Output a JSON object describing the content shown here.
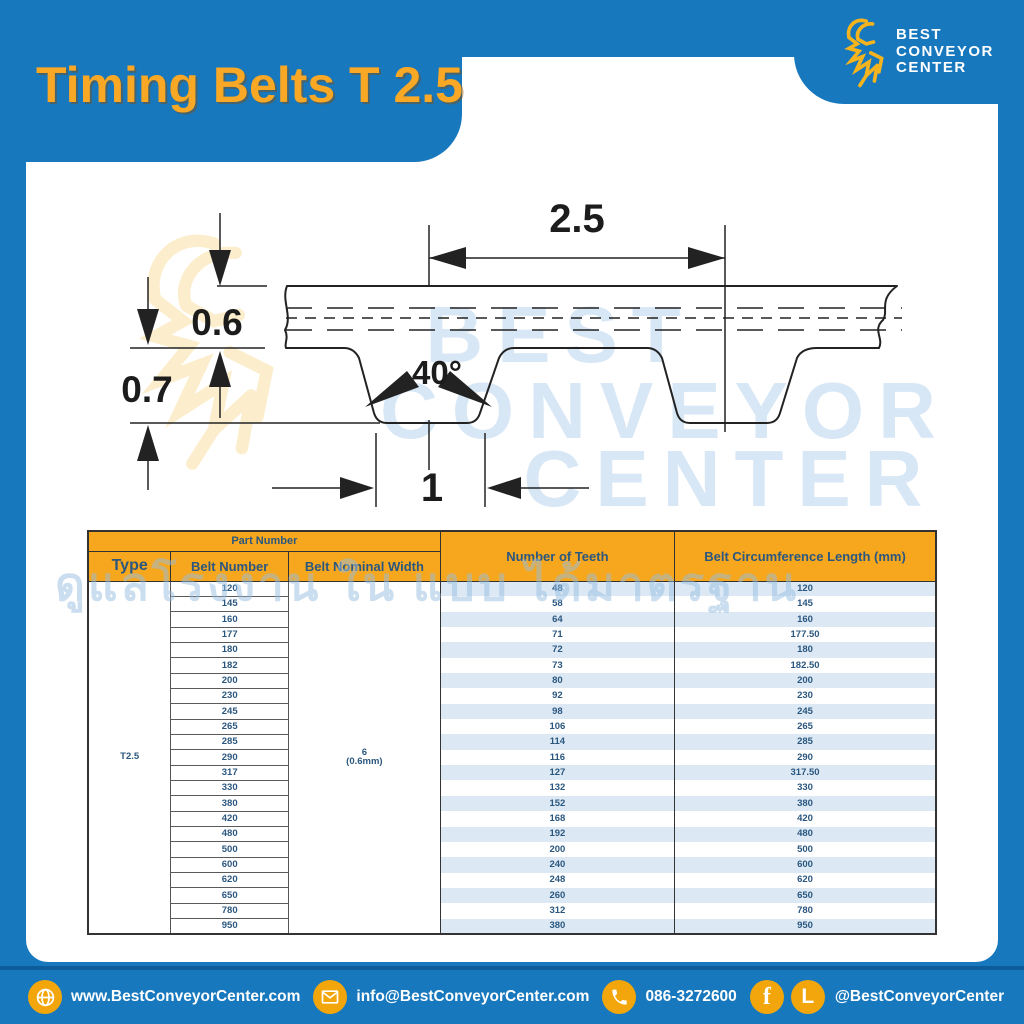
{
  "theme": {
    "blue": "#1878BE",
    "blue_dark": "#0D5C99",
    "yellow": "#F7A71D",
    "title_yellow": "#F9A826",
    "navy": "#2B577F",
    "stripe": "#DCE9F5"
  },
  "header": {
    "title": "Timing Belts T 2.5",
    "logo": {
      "line1": "BEST",
      "line2": "CONVEYOR",
      "line3": "CENTER"
    }
  },
  "diagram": {
    "dim_pitch": "2.5",
    "dim_thickness": "0.6",
    "dim_tooth_height": "0.7",
    "dim_angle": "40°",
    "dim_tooth_width": "1",
    "watermark": {
      "line1": "BEST",
      "line2": "CONVEYOR",
      "line3": "CENTER"
    }
  },
  "watermark_thai": "ดูแลโรงงาน ใน แบบ ได้มาตรฐาน",
  "table": {
    "header": {
      "part_number": "Part Number",
      "type": "Type",
      "belt_number": "Belt Number",
      "belt_nominal_width": "Belt Nominal Width",
      "teeth": "Number of Teeth",
      "length": "Belt Circumference Length (mm)"
    },
    "type_value": "T2.5",
    "nominal_width_line1": "6",
    "nominal_width_line2": "(0.6mm)",
    "rows": [
      {
        "belt": "120",
        "teeth": "48",
        "length": "120"
      },
      {
        "belt": "145",
        "teeth": "58",
        "length": "145"
      },
      {
        "belt": "160",
        "teeth": "64",
        "length": "160"
      },
      {
        "belt": "177",
        "teeth": "71",
        "length": "177.50"
      },
      {
        "belt": "180",
        "teeth": "72",
        "length": "180"
      },
      {
        "belt": "182",
        "teeth": "73",
        "length": "182.50"
      },
      {
        "belt": "200",
        "teeth": "80",
        "length": "200"
      },
      {
        "belt": "230",
        "teeth": "92",
        "length": "230"
      },
      {
        "belt": "245",
        "teeth": "98",
        "length": "245"
      },
      {
        "belt": "265",
        "teeth": "106",
        "length": "265"
      },
      {
        "belt": "285",
        "teeth": "114",
        "length": "285"
      },
      {
        "belt": "290",
        "teeth": "116",
        "length": "290"
      },
      {
        "belt": "317",
        "teeth": "127",
        "length": "317.50"
      },
      {
        "belt": "330",
        "teeth": "132",
        "length": "330"
      },
      {
        "belt": "380",
        "teeth": "152",
        "length": "380"
      },
      {
        "belt": "420",
        "teeth": "168",
        "length": "420"
      },
      {
        "belt": "480",
        "teeth": "192",
        "length": "480"
      },
      {
        "belt": "500",
        "teeth": "200",
        "length": "500"
      },
      {
        "belt": "600",
        "teeth": "240",
        "length": "600"
      },
      {
        "belt": "620",
        "teeth": "248",
        "length": "620"
      },
      {
        "belt": "650",
        "teeth": "260",
        "length": "650"
      },
      {
        "belt": "780",
        "teeth": "312",
        "length": "780"
      },
      {
        "belt": "950",
        "teeth": "380",
        "length": "950"
      }
    ]
  },
  "footer": {
    "website": "www.BestConveyorCenter.com",
    "email": "info@BestConveyorCenter.com",
    "phone": "086-3272600",
    "social": "@BestConveyorCenter"
  }
}
